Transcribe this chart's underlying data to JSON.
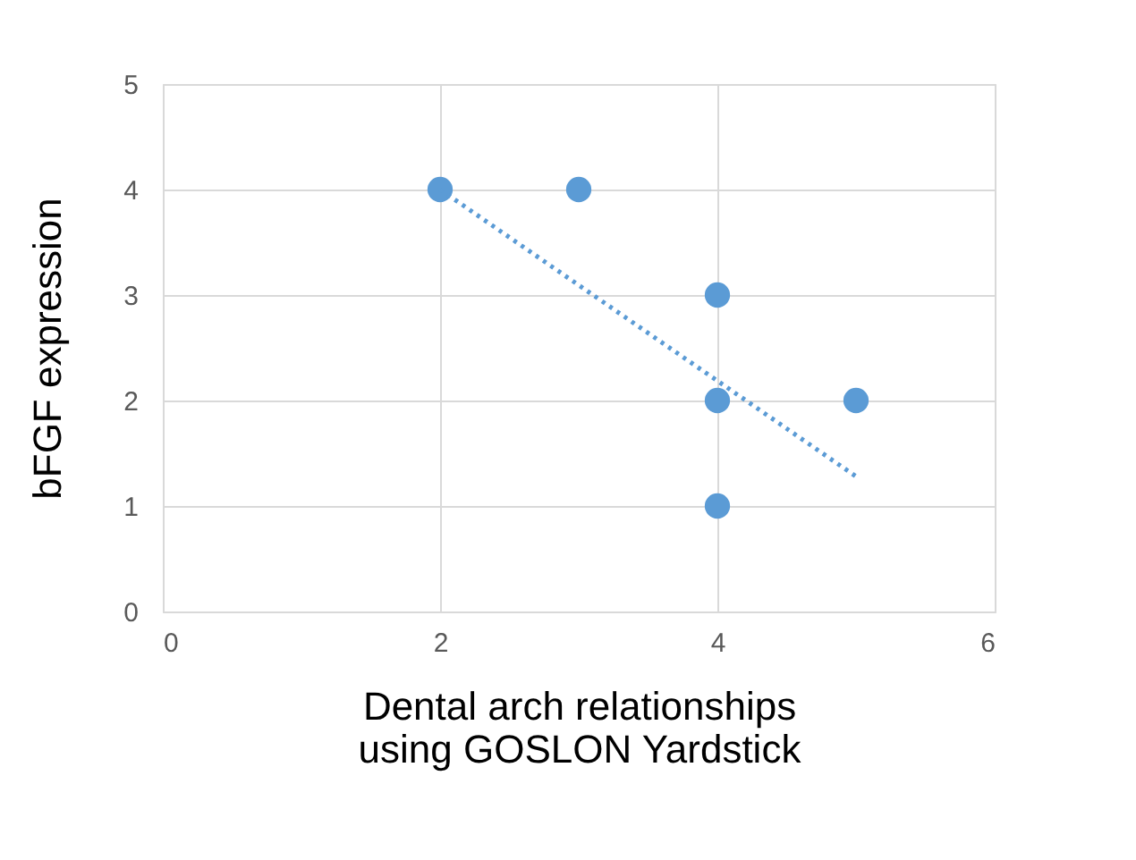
{
  "chart_data": {
    "type": "scatter",
    "xlabel": "Dental arch relationships\nusing GOSLON Yardstick",
    "ylabel": "bFGF expression",
    "xlim": [
      0,
      6
    ],
    "xticks": [
      0,
      2,
      4,
      6
    ],
    "ylim": [
      0,
      5
    ],
    "yticks": [
      0,
      1,
      2,
      3,
      4,
      5
    ],
    "grid": true,
    "series": [
      {
        "type": "scatter",
        "marker": "circle",
        "color": "#5b9bd5",
        "x": [
          2,
          3,
          4,
          4,
          4,
          5
        ],
        "values": [
          4,
          4,
          3,
          2,
          1,
          2
        ]
      },
      {
        "type": "line",
        "marker": "none",
        "color": "#5b9bd5",
        "line_style": "dotted",
        "x": [
          2,
          5
        ],
        "values": [
          4.0,
          1.28
        ]
      }
    ]
  }
}
